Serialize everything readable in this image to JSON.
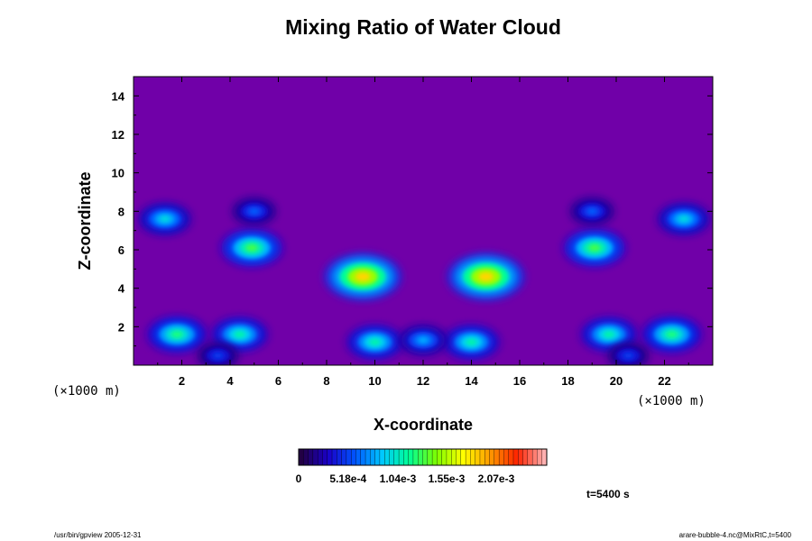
{
  "chart_data": {
    "type": "heatmap",
    "title": "Mixing Ratio of Water Cloud",
    "xlabel": "X-coordinate",
    "ylabel": "Z-coordinate",
    "x_unit": "(×1000 m)",
    "y_unit": "(×1000 m)",
    "xlim": [
      0,
      24
    ],
    "ylim": [
      0,
      15
    ],
    "x_ticks": [
      "2",
      "4",
      "6",
      "8",
      "10",
      "12",
      "14",
      "16",
      "18",
      "20",
      "22"
    ],
    "y_ticks": [
      "2",
      "4",
      "6",
      "8",
      "10",
      "12",
      "14"
    ],
    "colorbar": {
      "range": [
        0,
        0.0026
      ],
      "tick_labels": [
        "0",
        "5.18e-4",
        "1.04e-3",
        "1.55e-3",
        "2.07e-3"
      ],
      "colors": [
        "#220044",
        "#1a00c8",
        "#0055ff",
        "#00c8ff",
        "#00ff96",
        "#7dff00",
        "#ffff00",
        "#ff9900",
        "#ff2200",
        "#ffb0b0"
      ]
    },
    "background_color": "#7000a8",
    "cloud_blobs_km": [
      {
        "x": 9.5,
        "z": 4.6,
        "peak": 0.00185
      },
      {
        "x": 14.6,
        "z": 4.6,
        "peak": 0.00185
      },
      {
        "x": 4.9,
        "z": 6.1,
        "peak": 0.0013
      },
      {
        "x": 19.1,
        "z": 6.1,
        "peak": 0.0013
      },
      {
        "x": 1.3,
        "z": 7.6,
        "peak": 0.00095
      },
      {
        "x": 22.8,
        "z": 7.6,
        "peak": 0.00095
      },
      {
        "x": 1.8,
        "z": 1.6,
        "peak": 0.0012
      },
      {
        "x": 22.3,
        "z": 1.6,
        "peak": 0.0012
      },
      {
        "x": 4.4,
        "z": 1.6,
        "peak": 0.0011
      },
      {
        "x": 19.7,
        "z": 1.6,
        "peak": 0.0011
      },
      {
        "x": 10.0,
        "z": 1.2,
        "peak": 0.0011
      },
      {
        "x": 14.0,
        "z": 1.2,
        "peak": 0.0011
      },
      {
        "x": 12.0,
        "z": 1.3,
        "peak": 0.0008
      },
      {
        "x": 5.0,
        "z": 8.0,
        "peak": 0.0006
      },
      {
        "x": 19.0,
        "z": 8.0,
        "peak": 0.0006
      },
      {
        "x": 3.5,
        "z": 0.5,
        "peak": 0.0005
      },
      {
        "x": 20.5,
        "z": 0.5,
        "peak": 0.0005
      }
    ],
    "time_label": "t=5400 s",
    "footer_left": "/usr/bin/gpview 2005-12-31",
    "footer_right": "arare-bubble-4.nc@MixRtC,t=5400"
  }
}
